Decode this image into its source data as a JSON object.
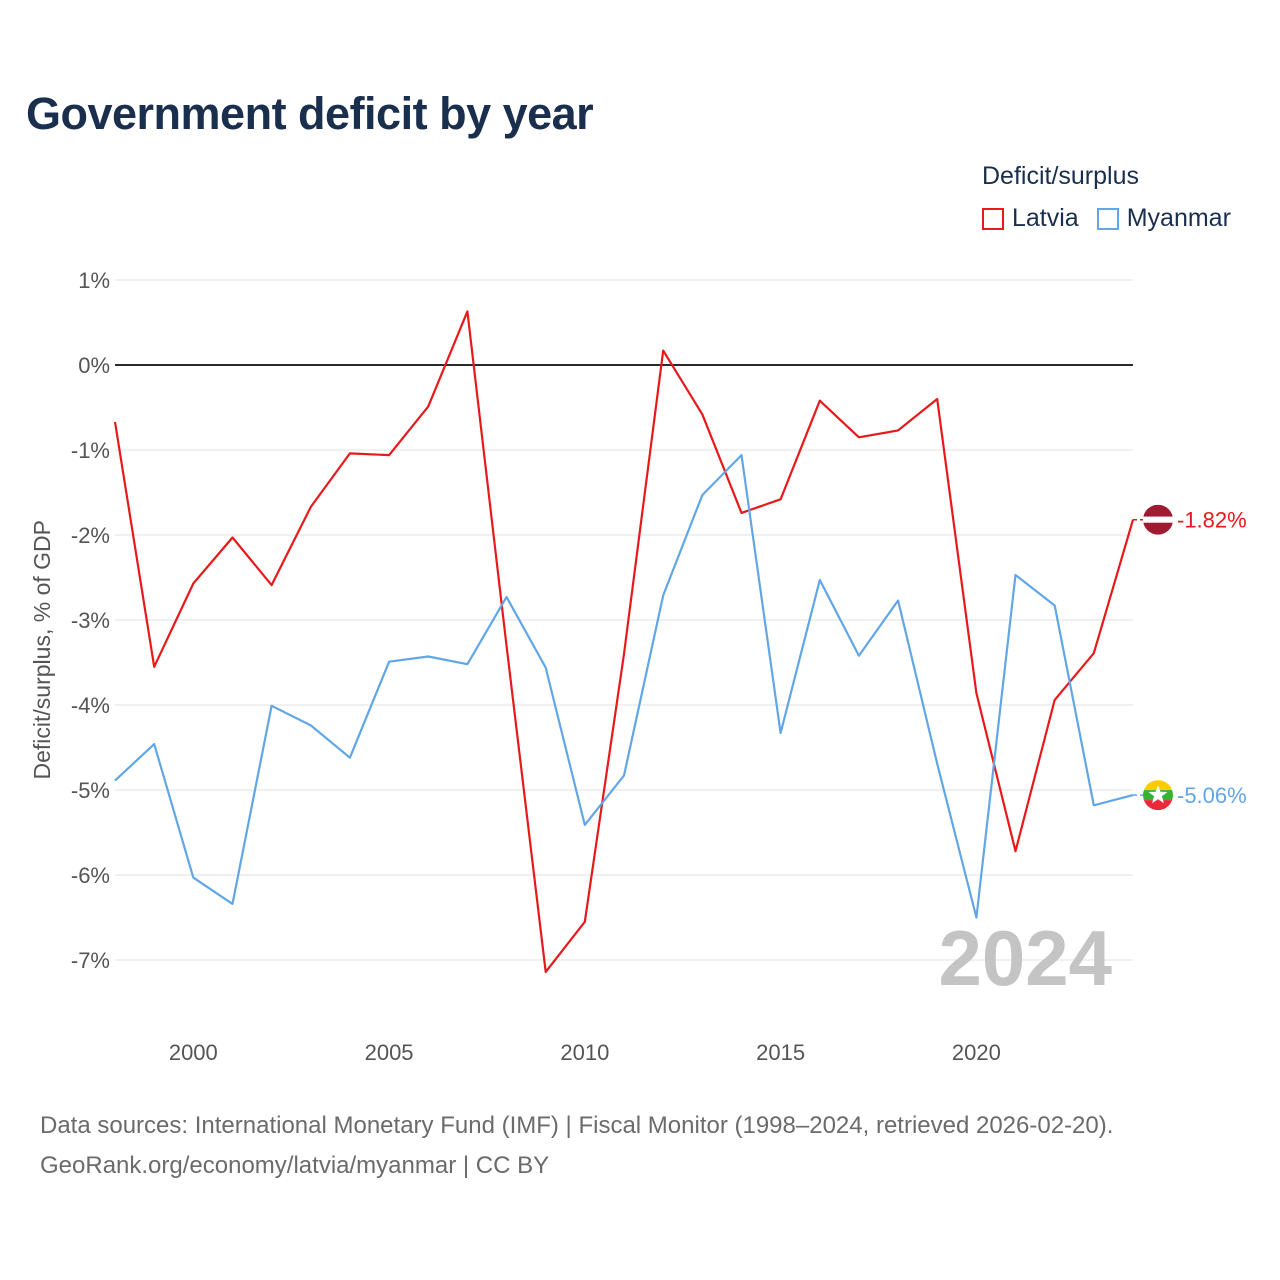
{
  "title": "Government deficit by year",
  "legend": {
    "title": "Deficit/surplus",
    "items": [
      {
        "label": "Latvia",
        "color": "#e8191b"
      },
      {
        "label": "Myanmar",
        "color": "#61a6e6"
      }
    ]
  },
  "footer": {
    "line1": "Data sources: International Monetary Fund (IMF) | Fiscal Monitor (1998–2024, retrieved 2026-02-20).",
    "line2": "GeoRank.org/economy/latvia/myanmar | CC BY"
  },
  "chart_data": {
    "type": "line",
    "title": "Government deficit by year",
    "xlabel": "",
    "ylabel": "Deficit/surplus, % of GDP",
    "x": [
      1998,
      1999,
      2000,
      2001,
      2002,
      2003,
      2004,
      2005,
      2006,
      2007,
      2008,
      2009,
      2010,
      2011,
      2012,
      2013,
      2014,
      2015,
      2016,
      2017,
      2018,
      2019,
      2020,
      2021,
      2022,
      2023,
      2024
    ],
    "xlim": [
      1998,
      2024
    ],
    "ylim": [
      -7.6,
      1.0
    ],
    "xticks": [
      2000,
      2005,
      2010,
      2015,
      2020
    ],
    "xtick_labels": [
      "2000",
      "2005",
      "2010",
      "2015",
      "2020"
    ],
    "yticks": [
      1,
      0,
      -1,
      -2,
      -3,
      -4,
      -5,
      -6,
      -7
    ],
    "ytick_labels": [
      "1%",
      "0%",
      "-1%",
      "-2%",
      "-3%",
      "-4%",
      "-5%",
      "-6%",
      "-7%"
    ],
    "zero_line": 0,
    "grid": true,
    "current_year_label": "2024",
    "series": [
      {
        "name": "Latvia",
        "color": "#e8191b",
        "values": [
          -0.67,
          -3.55,
          -2.57,
          -2.03,
          -2.59,
          -1.67,
          -1.04,
          -1.06,
          -0.49,
          0.63,
          -3.3,
          -7.14,
          -6.55,
          -3.4,
          0.17,
          -0.58,
          -1.74,
          -1.58,
          -0.42,
          -0.85,
          -0.77,
          -0.4,
          -3.86,
          -5.72,
          -3.94,
          -3.39,
          -1.82
        ],
        "end_label": "-1.82%"
      },
      {
        "name": "Myanmar",
        "color": "#61a6e6",
        "values": [
          -4.89,
          -4.46,
          -6.03,
          -6.34,
          -4.01,
          -4.24,
          -4.62,
          -3.49,
          -3.43,
          -3.52,
          -2.73,
          -3.56,
          -5.41,
          -4.83,
          -2.71,
          -1.53,
          -1.06,
          -4.33,
          -2.53,
          -3.42,
          -2.77,
          -4.69,
          -6.5,
          -2.47,
          -2.83,
          -5.18,
          -5.06
        ],
        "end_label": "-5.06%"
      }
    ]
  }
}
